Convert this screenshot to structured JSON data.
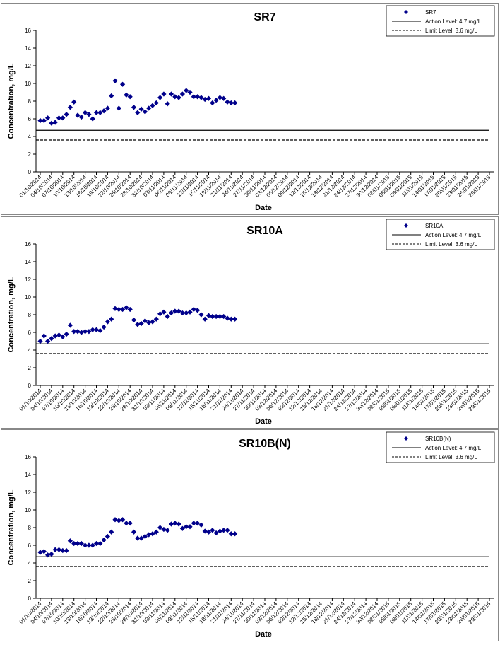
{
  "chart_data": [
    {
      "type": "scatter",
      "title": "SR7",
      "xlabel": "Date",
      "ylabel": "Concentration, mg/L",
      "ylim": [
        0,
        16
      ],
      "yticks": [
        "0",
        "2",
        "4",
        "6",
        "8",
        "10",
        "12",
        "14",
        "16"
      ],
      "x_tick_labels": [
        "01/10/2014",
        "04/10/2014",
        "07/10/2014",
        "10/10/2014",
        "13/10/2014",
        "16/10/2014",
        "19/10/2014",
        "22/10/2014",
        "25/10/2014",
        "28/10/2014",
        "31/10/2014",
        "03/11/2014",
        "06/11/2014",
        "09/11/2014",
        "12/11/2014",
        "15/11/2014",
        "18/11/2014",
        "21/11/2014",
        "24/11/2014",
        "27/11/2014",
        "30/11/2014",
        "03/12/2014",
        "06/12/2014",
        "09/12/2014",
        "12/12/2014",
        "15/12/2014",
        "18/12/2014",
        "21/12/2014",
        "24/12/2014",
        "27/12/2014",
        "30/12/2014",
        "02/01/2015",
        "05/01/2015",
        "08/01/2015",
        "11/01/2015",
        "14/01/2015",
        "17/01/2015",
        "20/01/2015",
        "23/01/2015",
        "26/01/2015",
        "29/01/2015"
      ],
      "grid": false,
      "legend": "top-right",
      "series": [
        {
          "name": "SR7",
          "color": "#00008B",
          "marker": "diamond",
          "points": [
            [
              "01/10/2014",
              5.8
            ],
            [
              "02/10/2014",
              5.8
            ],
            [
              "03/10/2014",
              6.1
            ],
            [
              "04/10/2014",
              5.5
            ],
            [
              "05/10/2014",
              5.6
            ],
            [
              "06/10/2014",
              6.1
            ],
            [
              "07/10/2014",
              6.1
            ],
            [
              "08/10/2014",
              6.5
            ],
            [
              "09/10/2014",
              7.3
            ],
            [
              "10/10/2014",
              7.9
            ],
            [
              "11/10/2014",
              6.4
            ],
            [
              "12/10/2014",
              6.2
            ],
            [
              "13/10/2014",
              6.7
            ],
            [
              "14/10/2014",
              6.5
            ],
            [
              "15/10/2014",
              6.0
            ],
            [
              "16/10/2014",
              6.7
            ],
            [
              "17/10/2014",
              6.7
            ],
            [
              "18/10/2014",
              6.9
            ],
            [
              "19/10/2014",
              7.2
            ],
            [
              "20/10/2014",
              8.6
            ],
            [
              "21/10/2014",
              10.3
            ],
            [
              "22/10/2014",
              7.2
            ],
            [
              "23/10/2014",
              9.9
            ],
            [
              "24/10/2014",
              8.7
            ],
            [
              "25/10/2014",
              8.5
            ],
            [
              "26/10/2014",
              7.3
            ],
            [
              "27/10/2014",
              6.7
            ],
            [
              "28/10/2014",
              7.1
            ],
            [
              "29/10/2014",
              6.8
            ],
            [
              "30/10/2014",
              7.2
            ],
            [
              "31/10/2014",
              7.5
            ],
            [
              "01/11/2014",
              7.8
            ],
            [
              "02/11/2014",
              8.4
            ],
            [
              "03/11/2014",
              8.8
            ],
            [
              "04/11/2014",
              7.7
            ],
            [
              "05/11/2014",
              8.8
            ],
            [
              "06/11/2014",
              8.5
            ],
            [
              "07/11/2014",
              8.4
            ],
            [
              "08/11/2014",
              8.8
            ],
            [
              "09/11/2014",
              9.2
            ],
            [
              "10/11/2014",
              9.0
            ],
            [
              "11/11/2014",
              8.5
            ],
            [
              "12/11/2014",
              8.5
            ],
            [
              "13/11/2014",
              8.4
            ],
            [
              "14/11/2014",
              8.2
            ],
            [
              "15/11/2014",
              8.3
            ],
            [
              "16/11/2014",
              7.8
            ],
            [
              "17/11/2014",
              8.1
            ],
            [
              "18/11/2014",
              8.4
            ],
            [
              "19/11/2014",
              8.3
            ],
            [
              "20/11/2014",
              7.9
            ],
            [
              "21/11/2014",
              7.8
            ],
            [
              "22/11/2014",
              7.8
            ]
          ]
        },
        {
          "name": "Action Level: 4.7 mg/L",
          "color": "#000000",
          "line": "solid",
          "value": 4.7
        },
        {
          "name": "Limit Level: 3.6 mg/L",
          "color": "#000000",
          "line": "dashed",
          "value": 3.6
        }
      ]
    },
    {
      "type": "scatter",
      "title": "SR10A",
      "xlabel": "Date",
      "ylabel": "Concentration, mg/L",
      "ylim": [
        0,
        16
      ],
      "yticks": [
        "0",
        "2",
        "4",
        "6",
        "8",
        "10",
        "12",
        "14",
        "16"
      ],
      "x_tick_labels": [
        "01/10/2014",
        "04/10/2014",
        "07/10/2014",
        "10/10/2014",
        "13/10/2014",
        "16/10/2014",
        "19/10/2014",
        "22/10/2014",
        "25/10/2014",
        "28/10/2014",
        "31/10/2014",
        "03/11/2014",
        "06/11/2014",
        "09/11/2014",
        "12/11/2014",
        "15/11/2014",
        "18/11/2014",
        "21/11/2014",
        "24/11/2014",
        "27/11/2014",
        "30/11/2014",
        "03/12/2014",
        "06/12/2014",
        "09/12/2014",
        "12/12/2014",
        "15/12/2014",
        "18/12/2014",
        "21/12/2014",
        "24/12/2014",
        "27/12/2014",
        "30/12/2014",
        "02/01/2015",
        "05/01/2015",
        "08/01/2015",
        "11/01/2015",
        "14/01/2015",
        "17/01/2015",
        "20/01/2015",
        "23/01/2015",
        "26/01/2015",
        "29/01/2015"
      ],
      "grid": false,
      "legend": "top-right",
      "series": [
        {
          "name": "SR10A",
          "color": "#00008B",
          "marker": "diamond",
          "points": [
            [
              "01/10/2014",
              5.0
            ],
            [
              "02/10/2014",
              5.6
            ],
            [
              "03/10/2014",
              5.0
            ],
            [
              "04/10/2014",
              5.3
            ],
            [
              "05/10/2014",
              5.6
            ],
            [
              "06/10/2014",
              5.7
            ],
            [
              "07/10/2014",
              5.5
            ],
            [
              "08/10/2014",
              5.8
            ],
            [
              "09/10/2014",
              6.8
            ],
            [
              "10/10/2014",
              6.1
            ],
            [
              "11/10/2014",
              6.1
            ],
            [
              "12/10/2014",
              6.0
            ],
            [
              "13/10/2014",
              6.1
            ],
            [
              "14/10/2014",
              6.1
            ],
            [
              "15/10/2014",
              6.3
            ],
            [
              "16/10/2014",
              6.3
            ],
            [
              "17/10/2014",
              6.2
            ],
            [
              "18/10/2014",
              6.6
            ],
            [
              "19/10/2014",
              7.2
            ],
            [
              "20/10/2014",
              7.5
            ],
            [
              "21/10/2014",
              8.7
            ],
            [
              "22/10/2014",
              8.6
            ],
            [
              "23/10/2014",
              8.6
            ],
            [
              "24/10/2014",
              8.8
            ],
            [
              "25/10/2014",
              8.6
            ],
            [
              "26/10/2014",
              7.4
            ],
            [
              "27/10/2014",
              6.9
            ],
            [
              "28/10/2014",
              7.0
            ],
            [
              "29/10/2014",
              7.3
            ],
            [
              "30/10/2014",
              7.1
            ],
            [
              "31/10/2014",
              7.2
            ],
            [
              "01/11/2014",
              7.5
            ],
            [
              "02/11/2014",
              8.1
            ],
            [
              "03/11/2014",
              8.3
            ],
            [
              "04/11/2014",
              7.8
            ],
            [
              "05/11/2014",
              8.2
            ],
            [
              "06/11/2014",
              8.4
            ],
            [
              "07/11/2014",
              8.4
            ],
            [
              "08/11/2014",
              8.2
            ],
            [
              "09/11/2014",
              8.2
            ],
            [
              "10/11/2014",
              8.3
            ],
            [
              "11/11/2014",
              8.6
            ],
            [
              "12/11/2014",
              8.5
            ],
            [
              "13/11/2014",
              8.0
            ],
            [
              "14/11/2014",
              7.5
            ],
            [
              "15/11/2014",
              7.9
            ],
            [
              "16/11/2014",
              7.8
            ],
            [
              "17/11/2014",
              7.8
            ],
            [
              "18/11/2014",
              7.8
            ],
            [
              "19/11/2014",
              7.8
            ],
            [
              "20/11/2014",
              7.6
            ],
            [
              "21/11/2014",
              7.5
            ],
            [
              "22/11/2014",
              7.5
            ]
          ]
        },
        {
          "name": "Action Level: 4.7 mg/L",
          "color": "#000000",
          "line": "solid",
          "value": 4.7
        },
        {
          "name": "Limit Level: 3.6 mg/L",
          "color": "#000000",
          "line": "dashed",
          "value": 3.6
        }
      ]
    },
    {
      "type": "scatter",
      "title": "SR10B(N)",
      "xlabel": "Date",
      "ylabel": "Concentration, mg/L",
      "ylim": [
        0,
        16
      ],
      "yticks": [
        "0",
        "2",
        "4",
        "6",
        "8",
        "10",
        "12",
        "14",
        "16"
      ],
      "x_tick_labels": [
        "01/10/2014",
        "04/10/2014",
        "07/10/2014",
        "10/10/2014",
        "13/10/2014",
        "16/10/2014",
        "19/10/2014",
        "22/10/2014",
        "25/10/2014",
        "28/10/2014",
        "31/10/2014",
        "03/11/2014",
        "06/11/2014",
        "09/11/2014",
        "12/11/2014",
        "15/11/2014",
        "18/11/2014",
        "21/11/2014",
        "24/11/2014",
        "27/11/2014",
        "30/11/2014",
        "03/12/2014",
        "06/12/2014",
        "09/12/2014",
        "12/12/2014",
        "15/12/2014",
        "18/12/2014",
        "21/12/2014",
        "24/12/2014",
        "27/12/2014",
        "30/12/2014",
        "02/01/2015",
        "05/01/2015",
        "08/01/2015",
        "11/01/2015",
        "14/01/2015",
        "17/01/2015",
        "20/01/2015",
        "23/01/2015",
        "26/01/2015",
        "29/01/2015"
      ],
      "grid": false,
      "legend": "top-right",
      "series": [
        {
          "name": "SR10B(N)",
          "color": "#00008B",
          "marker": "diamond",
          "points": [
            [
              "01/10/2014",
              5.2
            ],
            [
              "02/10/2014",
              5.3
            ],
            [
              "03/10/2014",
              4.9
            ],
            [
              "04/10/2014",
              5.0
            ],
            [
              "05/10/2014",
              5.5
            ],
            [
              "06/10/2014",
              5.5
            ],
            [
              "07/10/2014",
              5.4
            ],
            [
              "08/10/2014",
              5.4
            ],
            [
              "09/10/2014",
              6.5
            ],
            [
              "10/10/2014",
              6.2
            ],
            [
              "11/10/2014",
              6.2
            ],
            [
              "12/10/2014",
              6.2
            ],
            [
              "13/10/2014",
              6.0
            ],
            [
              "14/10/2014",
              6.0
            ],
            [
              "15/10/2014",
              6.0
            ],
            [
              "16/10/2014",
              6.2
            ],
            [
              "17/10/2014",
              6.2
            ],
            [
              "18/10/2014",
              6.6
            ],
            [
              "19/10/2014",
              7.0
            ],
            [
              "20/10/2014",
              7.5
            ],
            [
              "21/10/2014",
              8.9
            ],
            [
              "22/10/2014",
              8.8
            ],
            [
              "23/10/2014",
              8.9
            ],
            [
              "24/10/2014",
              8.5
            ],
            [
              "25/10/2014",
              8.5
            ],
            [
              "26/10/2014",
              7.5
            ],
            [
              "27/10/2014",
              6.8
            ],
            [
              "28/10/2014",
              6.8
            ],
            [
              "29/10/2014",
              7.0
            ],
            [
              "30/10/2014",
              7.2
            ],
            [
              "31/10/2014",
              7.3
            ],
            [
              "01/11/2014",
              7.5
            ],
            [
              "02/11/2014",
              8.0
            ],
            [
              "03/11/2014",
              7.8
            ],
            [
              "04/11/2014",
              7.7
            ],
            [
              "05/11/2014",
              8.4
            ],
            [
              "06/11/2014",
              8.5
            ],
            [
              "07/11/2014",
              8.4
            ],
            [
              "08/11/2014",
              7.9
            ],
            [
              "09/11/2014",
              8.1
            ],
            [
              "10/11/2014",
              8.1
            ],
            [
              "11/11/2014",
              8.5
            ],
            [
              "12/11/2014",
              8.5
            ],
            [
              "13/11/2014",
              8.3
            ],
            [
              "14/11/2014",
              7.6
            ],
            [
              "15/11/2014",
              7.5
            ],
            [
              "16/11/2014",
              7.7
            ],
            [
              "17/11/2014",
              7.4
            ],
            [
              "18/11/2014",
              7.6
            ],
            [
              "19/11/2014",
              7.7
            ],
            [
              "20/11/2014",
              7.7
            ],
            [
              "21/11/2014",
              7.3
            ],
            [
              "22/11/2014",
              7.3
            ]
          ]
        },
        {
          "name": "Action Level: 4.7 mg/L",
          "color": "#000000",
          "line": "solid",
          "value": 4.7
        },
        {
          "name": "Limit Level: 3.6 mg/L",
          "color": "#000000",
          "line": "dashed",
          "value": 3.6
        }
      ]
    }
  ]
}
